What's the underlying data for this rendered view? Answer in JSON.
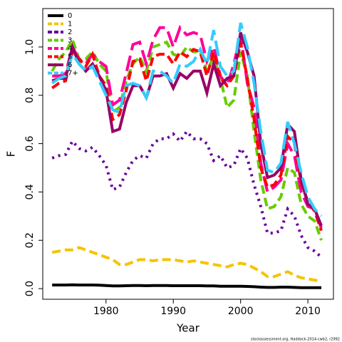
{
  "chart_data": {
    "type": "line",
    "x_label": "Year",
    "y_label": "F",
    "note": "stockassessment.org, Haddock-2014-cwb2, r2992",
    "x": [
      1972,
      1973,
      1974,
      1975,
      1976,
      1977,
      1978,
      1979,
      1980,
      1981,
      1982,
      1983,
      1984,
      1985,
      1986,
      1987,
      1988,
      1989,
      1990,
      1991,
      1992,
      1993,
      1994,
      1995,
      1996,
      1997,
      1998,
      1999,
      2000,
      2001,
      2002,
      2003,
      2004,
      2005,
      2006,
      2007,
      2008,
      2009,
      2010,
      2011,
      2012
    ],
    "xlim": [
      1970.6,
      2013.8
    ],
    "xticks": [
      1980,
      1990,
      2000,
      2010
    ],
    "ylim": [
      -0.044,
      1.159
    ],
    "yticks": [
      {
        "value": 0,
        "label": "0.0"
      },
      {
        "value": 0.2,
        "label": "0.2"
      },
      {
        "value": 0.4,
        "label": "0.4"
      },
      {
        "value": 0.6,
        "label": "0.6"
      },
      {
        "value": 0.8,
        "label": "0.8"
      },
      {
        "value": 1,
        "label": "1.0"
      }
    ],
    "legend": "top-left",
    "series": [
      {
        "name": "0",
        "color": "#000000",
        "values": [
          0.015,
          0.015,
          0.015,
          0.016,
          0.015,
          0.015,
          0.015,
          0.014,
          0.013,
          0.011,
          0.011,
          0.012,
          0.013,
          0.013,
          0.012,
          0.013,
          0.013,
          0.013,
          0.012,
          0.012,
          0.012,
          0.012,
          0.012,
          0.011,
          0.011,
          0.01,
          0.01,
          0.01,
          0.01,
          0.009,
          0.008,
          0.006,
          0.005,
          0.005,
          0.006,
          0.006,
          0.005,
          0.004,
          0.004,
          0.004,
          0.004
        ]
      },
      {
        "name": "1",
        "color": "#f5c400",
        "values": [
          0.15,
          0.155,
          0.16,
          0.16,
          0.17,
          0.16,
          0.15,
          0.14,
          0.13,
          0.12,
          0.1,
          0.1,
          0.11,
          0.12,
          0.12,
          0.115,
          0.12,
          0.12,
          0.12,
          0.115,
          0.11,
          0.115,
          0.11,
          0.105,
          0.1,
          0.095,
          0.09,
          0.1,
          0.105,
          0.1,
          0.085,
          0.07,
          0.05,
          0.05,
          0.06,
          0.07,
          0.055,
          0.045,
          0.04,
          0.035,
          0.03
        ]
      },
      {
        "name": "2",
        "color": "#660099",
        "values": [
          0.54,
          0.55,
          0.555,
          0.61,
          0.58,
          0.57,
          0.585,
          0.55,
          0.51,
          0.41,
          0.42,
          0.48,
          0.53,
          0.55,
          0.54,
          0.6,
          0.62,
          0.62,
          0.64,
          0.61,
          0.65,
          0.62,
          0.62,
          0.6,
          0.53,
          0.55,
          0.5,
          0.51,
          0.58,
          0.54,
          0.43,
          0.34,
          0.23,
          0.23,
          0.24,
          0.33,
          0.3,
          0.22,
          0.17,
          0.155,
          0.13
        ]
      },
      {
        "name": "3",
        "color": "#66cc00",
        "values": [
          0.9,
          0.95,
          0.98,
          1.03,
          0.95,
          0.95,
          0.98,
          0.93,
          0.9,
          0.73,
          0.75,
          0.86,
          0.93,
          0.96,
          0.9,
          1.0,
          1.01,
          1.02,
          0.97,
          0.96,
          1.0,
          0.98,
          0.98,
          0.9,
          0.96,
          0.87,
          0.75,
          0.78,
          0.98,
          0.88,
          0.65,
          0.45,
          0.33,
          0.34,
          0.38,
          0.5,
          0.48,
          0.35,
          0.3,
          0.28,
          0.2
        ]
      },
      {
        "name": "4",
        "color": "#ff0099",
        "values": [
          0.88,
          0.88,
          0.89,
          1.0,
          0.95,
          0.93,
          0.97,
          0.94,
          0.92,
          0.76,
          0.78,
          0.89,
          1.01,
          1.02,
          0.93,
          1.03,
          1.08,
          1.08,
          1.0,
          1.08,
          1.05,
          1.06,
          1.05,
          0.94,
          1.0,
          0.88,
          0.84,
          0.93,
          1.05,
          0.85,
          0.75,
          0.52,
          0.4,
          0.42,
          0.45,
          0.6,
          0.55,
          0.4,
          0.34,
          0.33,
          0.25
        ]
      },
      {
        "name": "5",
        "color": "#ff0000",
        "values": [
          0.83,
          0.85,
          0.86,
          0.98,
          0.95,
          0.92,
          0.97,
          0.88,
          0.84,
          0.7,
          0.72,
          0.82,
          0.94,
          0.95,
          0.86,
          0.96,
          0.97,
          0.97,
          0.93,
          0.98,
          0.96,
          0.99,
          0.98,
          0.88,
          0.98,
          0.87,
          0.84,
          0.88,
          1.02,
          0.87,
          0.7,
          0.5,
          0.42,
          0.43,
          0.47,
          0.63,
          0.6,
          0.44,
          0.36,
          0.32,
          0.24
        ]
      },
      {
        "name": "6",
        "color": "#990066",
        "values": [
          0.86,
          0.87,
          0.87,
          1.0,
          0.93,
          0.9,
          0.93,
          0.88,
          0.82,
          0.65,
          0.66,
          0.77,
          0.84,
          0.84,
          0.79,
          0.88,
          0.88,
          0.89,
          0.83,
          0.89,
          0.87,
          0.9,
          0.9,
          0.81,
          0.93,
          0.84,
          0.87,
          0.88,
          1.06,
          0.98,
          0.88,
          0.6,
          0.46,
          0.47,
          0.5,
          0.68,
          0.65,
          0.45,
          0.35,
          0.33,
          0.26
        ]
      },
      {
        "name": "7+",
        "color": "#33ccff",
        "values": [
          0.85,
          0.87,
          0.88,
          0.97,
          0.93,
          0.9,
          0.92,
          0.86,
          0.8,
          0.74,
          0.73,
          0.84,
          0.85,
          0.84,
          0.79,
          0.9,
          0.9,
          0.88,
          0.85,
          0.93,
          0.92,
          0.94,
          0.99,
          0.93,
          1.07,
          0.92,
          0.88,
          0.9,
          1.1,
          1.0,
          0.85,
          0.65,
          0.49,
          0.48,
          0.52,
          0.69,
          0.6,
          0.48,
          0.38,
          0.33,
          0.3
        ]
      }
    ]
  }
}
